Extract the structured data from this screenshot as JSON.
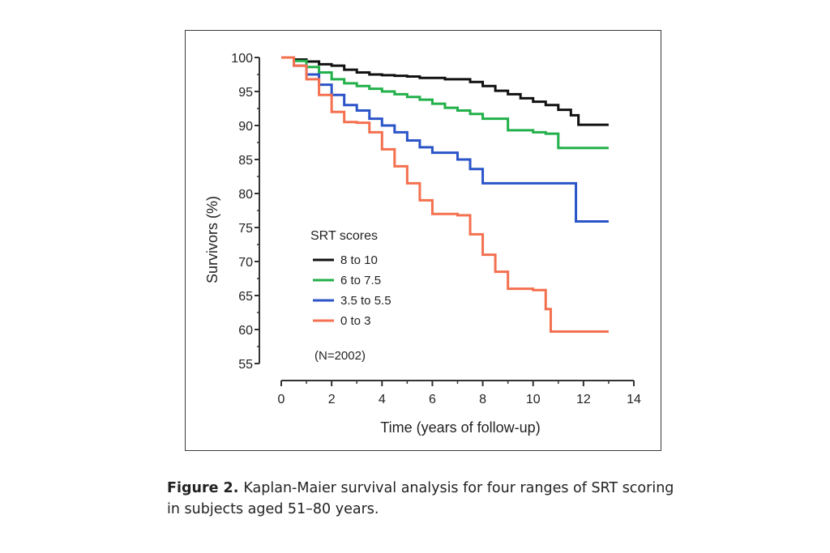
{
  "caption": {
    "label": "Figure 2.",
    "text": "Kaplan-Maier survival analysis for four ranges of SRT scoring in subjects aged 51–80 years."
  },
  "chart_data": {
    "type": "line",
    "step": true,
    "xlabel": "Time (years of follow-up)",
    "ylabel": "Survivors (%)",
    "xlim": [
      0,
      14
    ],
    "ylim": [
      55,
      100
    ],
    "xticks": [
      "0",
      "2",
      "4",
      "6",
      "8",
      "10",
      "12",
      "14"
    ],
    "yticks": [
      "55",
      "60",
      "65",
      "70",
      "75",
      "80",
      "85",
      "90",
      "95",
      "100"
    ],
    "grid": false,
    "legend_title": "SRT scores",
    "legend_position": "lower-left",
    "annotation": "(N=2002)",
    "series": [
      {
        "name": "8 to 10",
        "color": "#111111",
        "x": [
          0,
          0.5,
          1.0,
          1.5,
          2.0,
          2.5,
          3.0,
          3.5,
          4.0,
          4.5,
          5.0,
          5.5,
          6.5,
          7.5,
          8.0,
          8.5,
          9.0,
          9.5,
          10.0,
          10.5,
          11.0,
          11.5,
          11.8,
          13.0
        ],
        "y": [
          100,
          99.7,
          99.4,
          99.0,
          98.8,
          98.2,
          97.8,
          97.5,
          97.4,
          97.3,
          97.2,
          97.0,
          96.8,
          96.4,
          95.8,
          95.1,
          94.6,
          94.0,
          93.5,
          93.0,
          92.3,
          91.5,
          90.1,
          90.1
        ]
      },
      {
        "name": "6 to 7.5",
        "color": "#22b04a",
        "x": [
          0,
          0.5,
          1.0,
          1.5,
          2.0,
          2.5,
          3.0,
          3.5,
          4.0,
          4.5,
          5.0,
          5.5,
          6.0,
          6.5,
          7.0,
          7.5,
          8.0,
          9.0,
          10.0,
          10.5,
          11.0,
          13.0
        ],
        "y": [
          100,
          99.5,
          98.6,
          97.8,
          96.8,
          96.2,
          95.8,
          95.4,
          95.0,
          94.6,
          94.2,
          93.8,
          93.2,
          92.6,
          92.2,
          91.7,
          91.0,
          89.3,
          89.0,
          88.8,
          86.7,
          86.7
        ]
      },
      {
        "name": "3.5 to 5.5",
        "color": "#2b54c8",
        "x": [
          0,
          0.5,
          1.0,
          1.5,
          2.0,
          2.5,
          3.0,
          3.5,
          4.0,
          4.5,
          5.0,
          5.5,
          6.0,
          7.0,
          7.5,
          8.0,
          9.0,
          10.0,
          11.7,
          13.0
        ],
        "y": [
          100,
          98.8,
          97.5,
          96.0,
          94.5,
          93.0,
          92.2,
          91.0,
          90.0,
          89.0,
          87.8,
          86.8,
          86.0,
          85.0,
          83.6,
          81.5,
          81.5,
          81.5,
          75.9,
          75.9
        ]
      },
      {
        "name": "0 to 3",
        "color": "#f4704f",
        "x": [
          0,
          0.5,
          1.0,
          1.5,
          2.0,
          2.5,
          3.0,
          3.5,
          4.0,
          4.5,
          5.0,
          5.5,
          6.0,
          7.0,
          7.5,
          8.0,
          8.5,
          9.0,
          10.0,
          10.5,
          10.7,
          13.0
        ],
        "y": [
          100,
          98.8,
          96.8,
          94.5,
          92.0,
          90.5,
          90.4,
          89.0,
          86.5,
          84.0,
          81.5,
          79.0,
          77.0,
          76.8,
          74.0,
          71.0,
          68.5,
          66.0,
          65.8,
          63.0,
          59.7,
          59.7
        ]
      }
    ]
  }
}
